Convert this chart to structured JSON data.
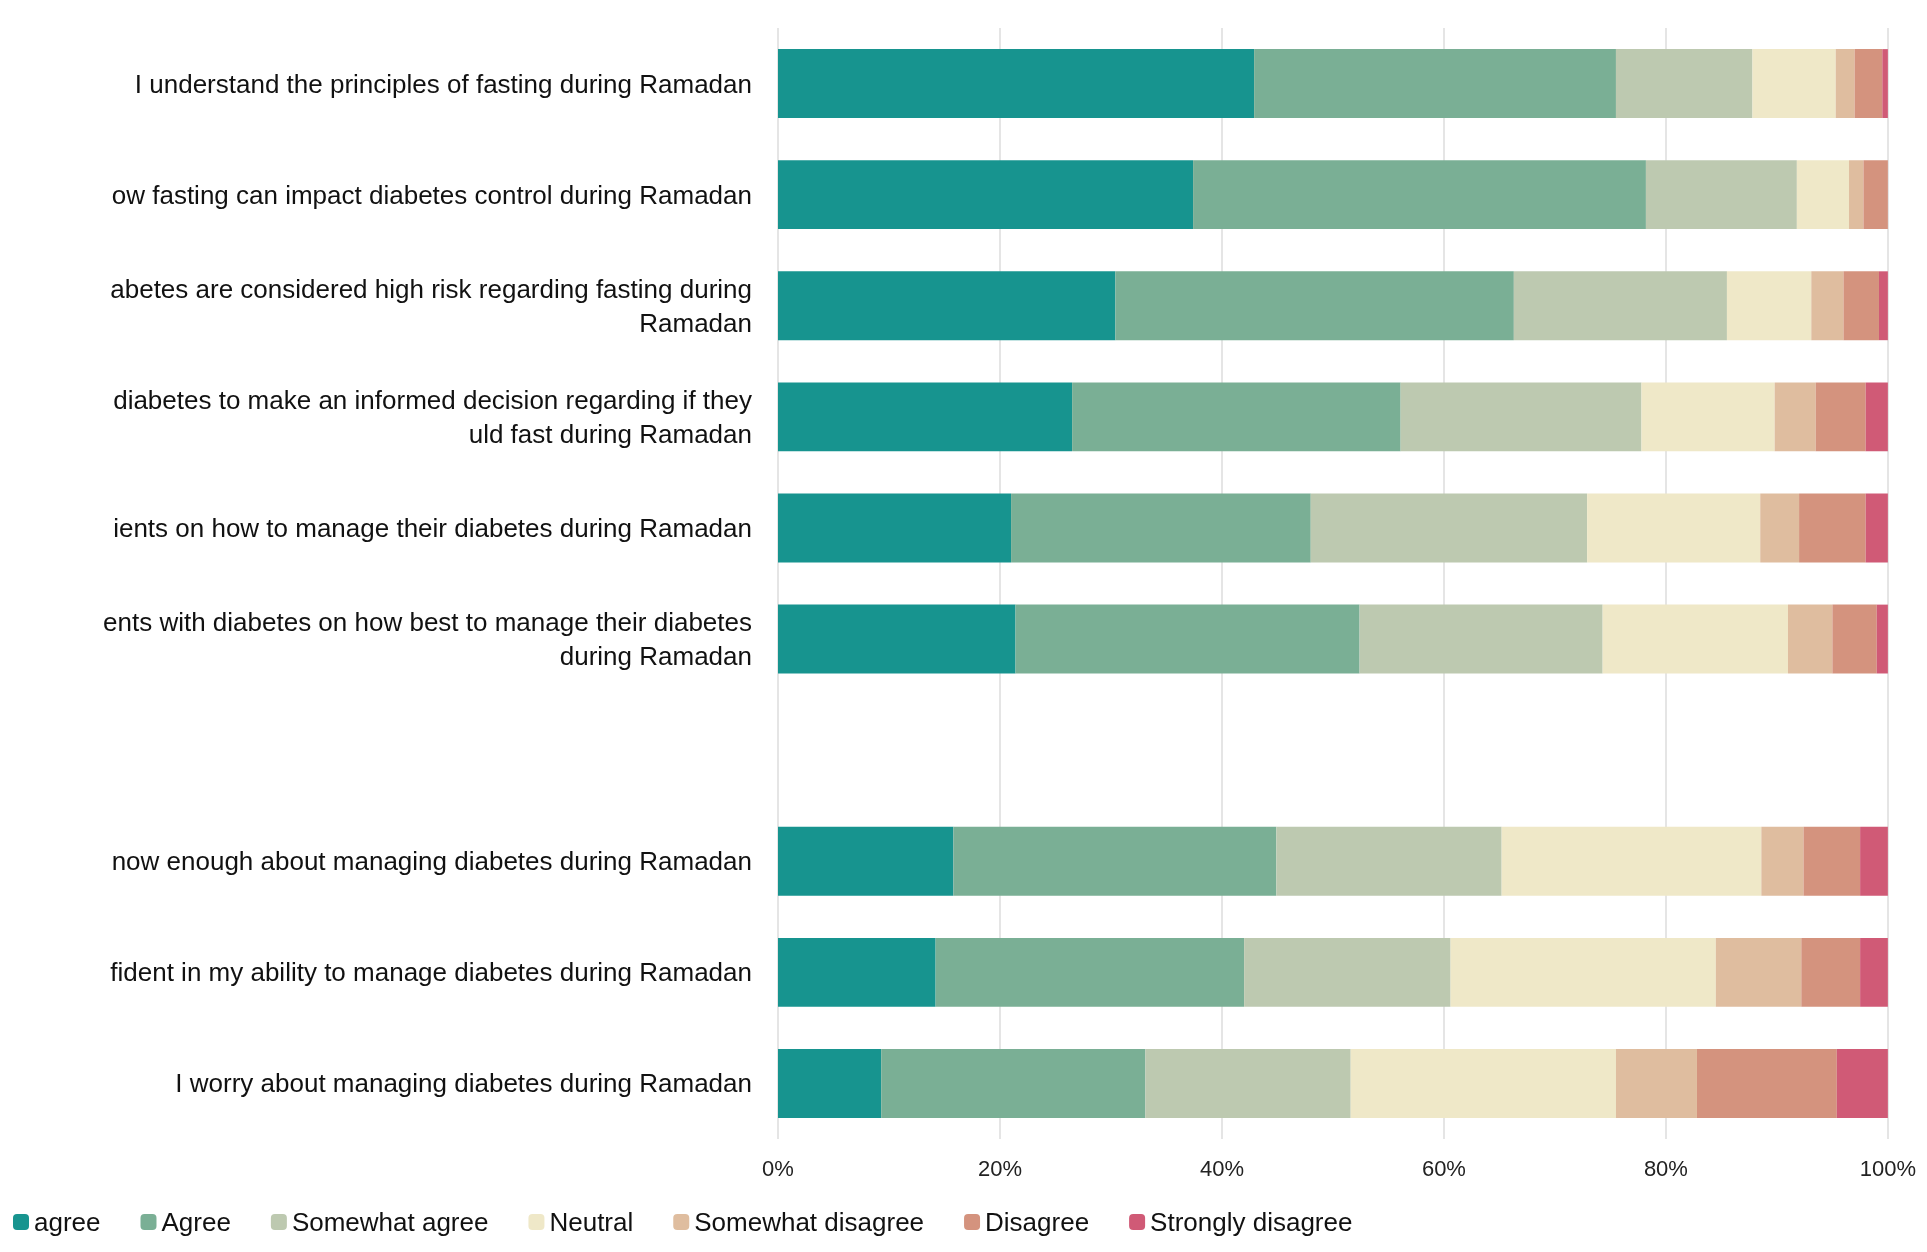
{
  "chart_data": {
    "type": "bar",
    "orientation": "horizontal",
    "stacked": true,
    "categories": [
      "I understand the principles of fasting during Ramadan",
      "ow fasting can impact diabetes control during Ramadan",
      "abetes are considered high risk regarding fasting during\nRamadan",
      "diabetes to make an informed decision regarding if they\nuld fast during Ramadan",
      "ients on how to manage their diabetes during Ramadan",
      "ents with diabetes on how best to manage their diabetes\nduring Ramadan",
      null,
      "now enough about managing diabetes during Ramadan",
      "fident in my ability to manage diabetes during Ramadan",
      "I worry about managing diabetes during Ramadan"
    ],
    "series": [
      {
        "name": "agree",
        "color": "#17948f",
        "values": [
          42.9,
          37.4,
          30.4,
          26.5,
          21.0,
          21.4,
          null,
          15.8,
          14.2,
          9.3
        ]
      },
      {
        "name": "Agree",
        "color": "#7aaf95",
        "values": [
          32.6,
          40.8,
          35.9,
          29.6,
          27.0,
          31.0,
          null,
          29.1,
          27.8,
          23.8
        ]
      },
      {
        "name": "Somewhat agree",
        "color": "#bdc9b0",
        "values": [
          12.3,
          13.6,
          19.2,
          21.7,
          24.9,
          21.9,
          null,
          20.3,
          18.6,
          18.5
        ]
      },
      {
        "name": "Neutral",
        "color": "#efe8c8",
        "values": [
          7.5,
          4.7,
          7.6,
          12.0,
          15.6,
          16.7,
          null,
          23.4,
          23.9,
          23.9
        ]
      },
      {
        "name": "Somewhat disagree",
        "color": "#dfbd9f",
        "values": [
          1.7,
          1.3,
          2.9,
          3.7,
          3.5,
          4.0,
          null,
          3.8,
          7.7,
          7.3
        ]
      },
      {
        "name": "Disagree",
        "color": "#d4937e",
        "values": [
          2.5,
          2.2,
          3.2,
          4.5,
          6.0,
          4.0,
          null,
          5.1,
          5.3,
          12.6
        ]
      },
      {
        "name": "Strongly disagree",
        "color": "#d05a76",
        "values": [
          0.5,
          0,
          0.8,
          2.0,
          2.0,
          1.0,
          null,
          2.5,
          2.5,
          4.6
        ]
      }
    ],
    "xlim": [
      0,
      100
    ],
    "xticks": [
      {
        "value": 0,
        "label": "0%"
      },
      {
        "value": 20,
        "label": "20%"
      },
      {
        "value": 40,
        "label": "40%"
      },
      {
        "value": 60,
        "label": "60%"
      },
      {
        "value": 80,
        "label": "80%"
      },
      {
        "value": 100,
        "label": "100%"
      }
    ],
    "grid": "x",
    "legend": "bottom"
  }
}
